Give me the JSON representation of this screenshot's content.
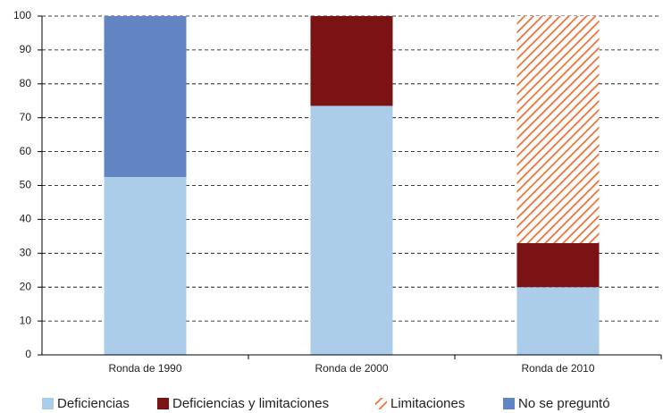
{
  "chart_data": {
    "type": "stacked-bar",
    "categories": [
      "Ronda de 1990",
      "Ronda de 2000",
      "Ronda de 2010"
    ],
    "series": [
      {
        "name": "Deficiencias",
        "color": "#abcdea",
        "values": [
          52.5,
          73.5,
          20
        ]
      },
      {
        "name": "Deficiencias y limitaciones",
        "color": "#7b1315",
        "values": [
          0,
          26.5,
          13
        ]
      },
      {
        "name": "Limitaciones",
        "color": "#ec6f35",
        "hatch": true,
        "values": [
          0,
          0,
          67
        ]
      },
      {
        "name": "No se preguntó",
        "color": "#6384c2",
        "values": [
          47.5,
          0,
          0
        ]
      }
    ],
    "ylim": [
      0,
      100
    ],
    "yticks": [
      0,
      10,
      20,
      30,
      40,
      50,
      60,
      70,
      80,
      90,
      100
    ],
    "grid": true
  }
}
